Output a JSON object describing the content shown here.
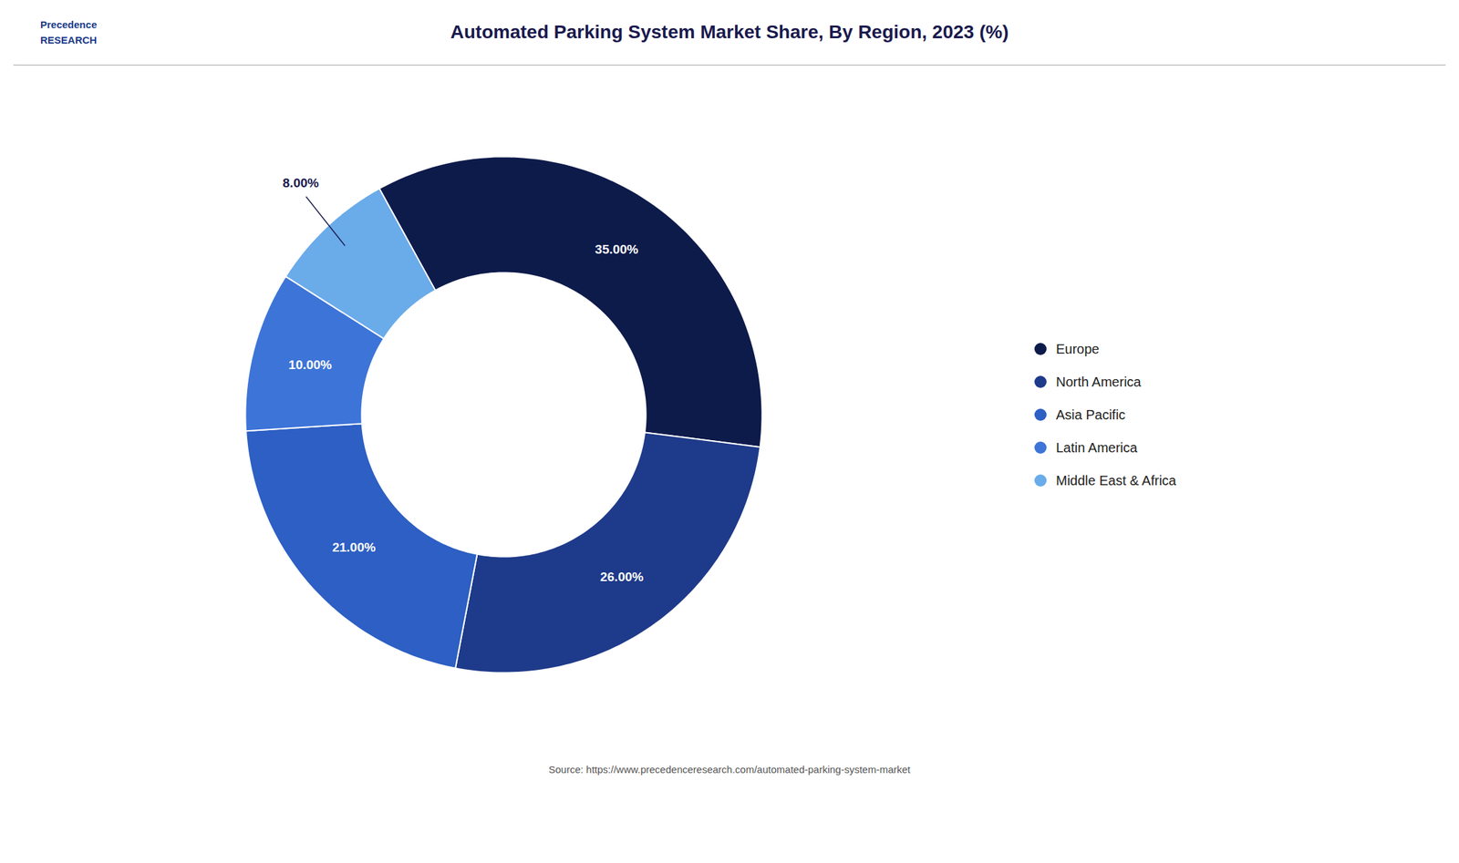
{
  "chart_data": {
    "type": "pie",
    "title": "Automated Parking System Market Share, By Region, 2023 (%)",
    "categories": [
      "Europe",
      "North America",
      "Asia Pacific",
      "Latin America",
      "Middle East & Africa"
    ],
    "values": [
      35.0,
      26.0,
      21.0,
      10.0,
      8.0
    ],
    "value_labels": [
      "35.00%",
      "26.00%",
      "21.00%",
      "10.00%",
      "8.00%"
    ],
    "colors": [
      "#0d1b4b",
      "#1e3a8a",
      "#2d5fc4",
      "#3d74d8",
      "#6aabea"
    ],
    "data_labels": true,
    "legend": "right",
    "annotations": [
      "Precedence\nRESEARCH",
      "Source: https://www.precedenceresearch.com/automated-parking-system-market"
    ]
  }
}
